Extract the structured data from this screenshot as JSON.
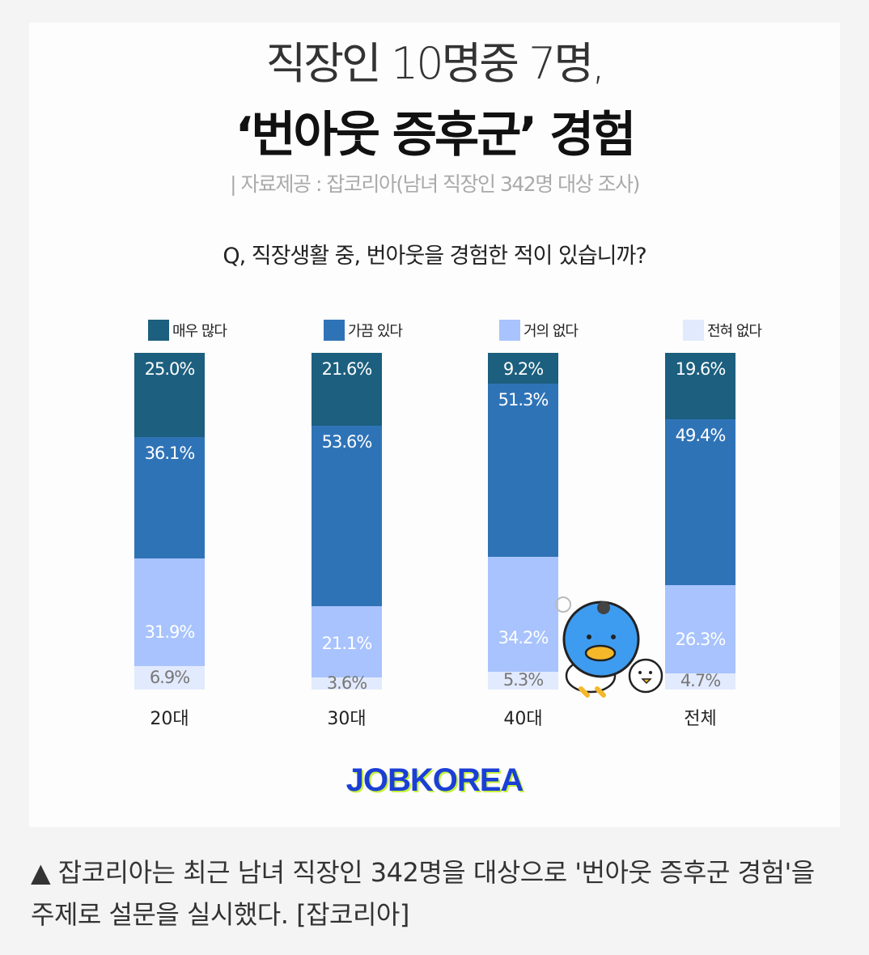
{
  "header": {
    "title_line1": "직장인 10명중 7명,",
    "title_line2": "‘번아웃 증후군’ 경험",
    "source": "| 자료제공 : 잡코리아(남녀 직장인 342명 대상 조사)"
  },
  "chart_data": {
    "type": "bar",
    "stacked": true,
    "title": "Q, 직장생활 중, 번아웃을 경험한 적이 있습니까?",
    "categories": [
      "20대",
      "30대",
      "40대",
      "전체"
    ],
    "unit": "%",
    "legend_placement": "top",
    "series": [
      {
        "name": "매우 많다",
        "color": "#1c5f7e",
        "values": [
          25.0,
          21.6,
          9.2,
          19.6
        ],
        "labels": [
          "25.0%",
          "21.6%",
          "9.2%",
          "19.6%"
        ]
      },
      {
        "name": "가끔 있다",
        "color": "#2f73b7",
        "values": [
          36.1,
          53.6,
          51.3,
          49.4
        ],
        "labels": [
          "36.1%",
          "53.6%",
          "51.3%",
          "49.4%"
        ]
      },
      {
        "name": "거의 없다",
        "color": "#a8c3fd",
        "values": [
          31.9,
          21.1,
          34.2,
          26.3
        ],
        "labels": [
          "31.9%",
          "21.1%",
          "34.2%",
          "26.3%"
        ]
      },
      {
        "name": "전혀 없다",
        "color": "#e2eafd",
        "values": [
          6.9,
          3.6,
          5.3,
          4.7
        ],
        "labels": [
          "6.9%",
          "3.6%",
          "5.3%",
          "4.7%"
        ]
      }
    ]
  },
  "logo": "JOBKOREA",
  "caption": "▲ 잡코리아는 최근 남녀 직장인 342명을 대상으로 '번아웃 증후군 경험'을 주제로 설문을 실시했다. [잡코리아]"
}
